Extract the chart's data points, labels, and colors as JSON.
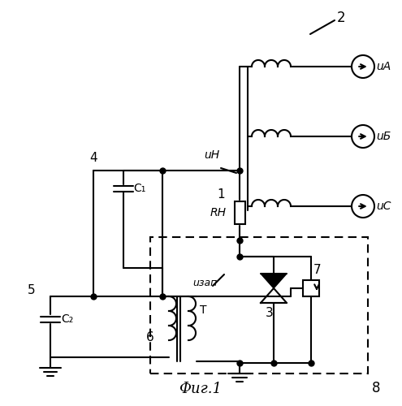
{
  "title": "Фиг.1",
  "background": "#ffffff",
  "line_color": "#000000",
  "line_width": 1.5,
  "dot_size": 5,
  "labels": {
    "uA": "uА",
    "uB": "uБ",
    "uC": "uС",
    "uN": "uН",
    "uzap": "uзап",
    "RN": "RН",
    "C1": "C₁",
    "C2": "C₂",
    "T": "T",
    "n1": "1",
    "n2": "2",
    "n3": "3",
    "n4": "4",
    "n5": "5",
    "n6": "6",
    "n7": "7",
    "n8": "8"
  }
}
